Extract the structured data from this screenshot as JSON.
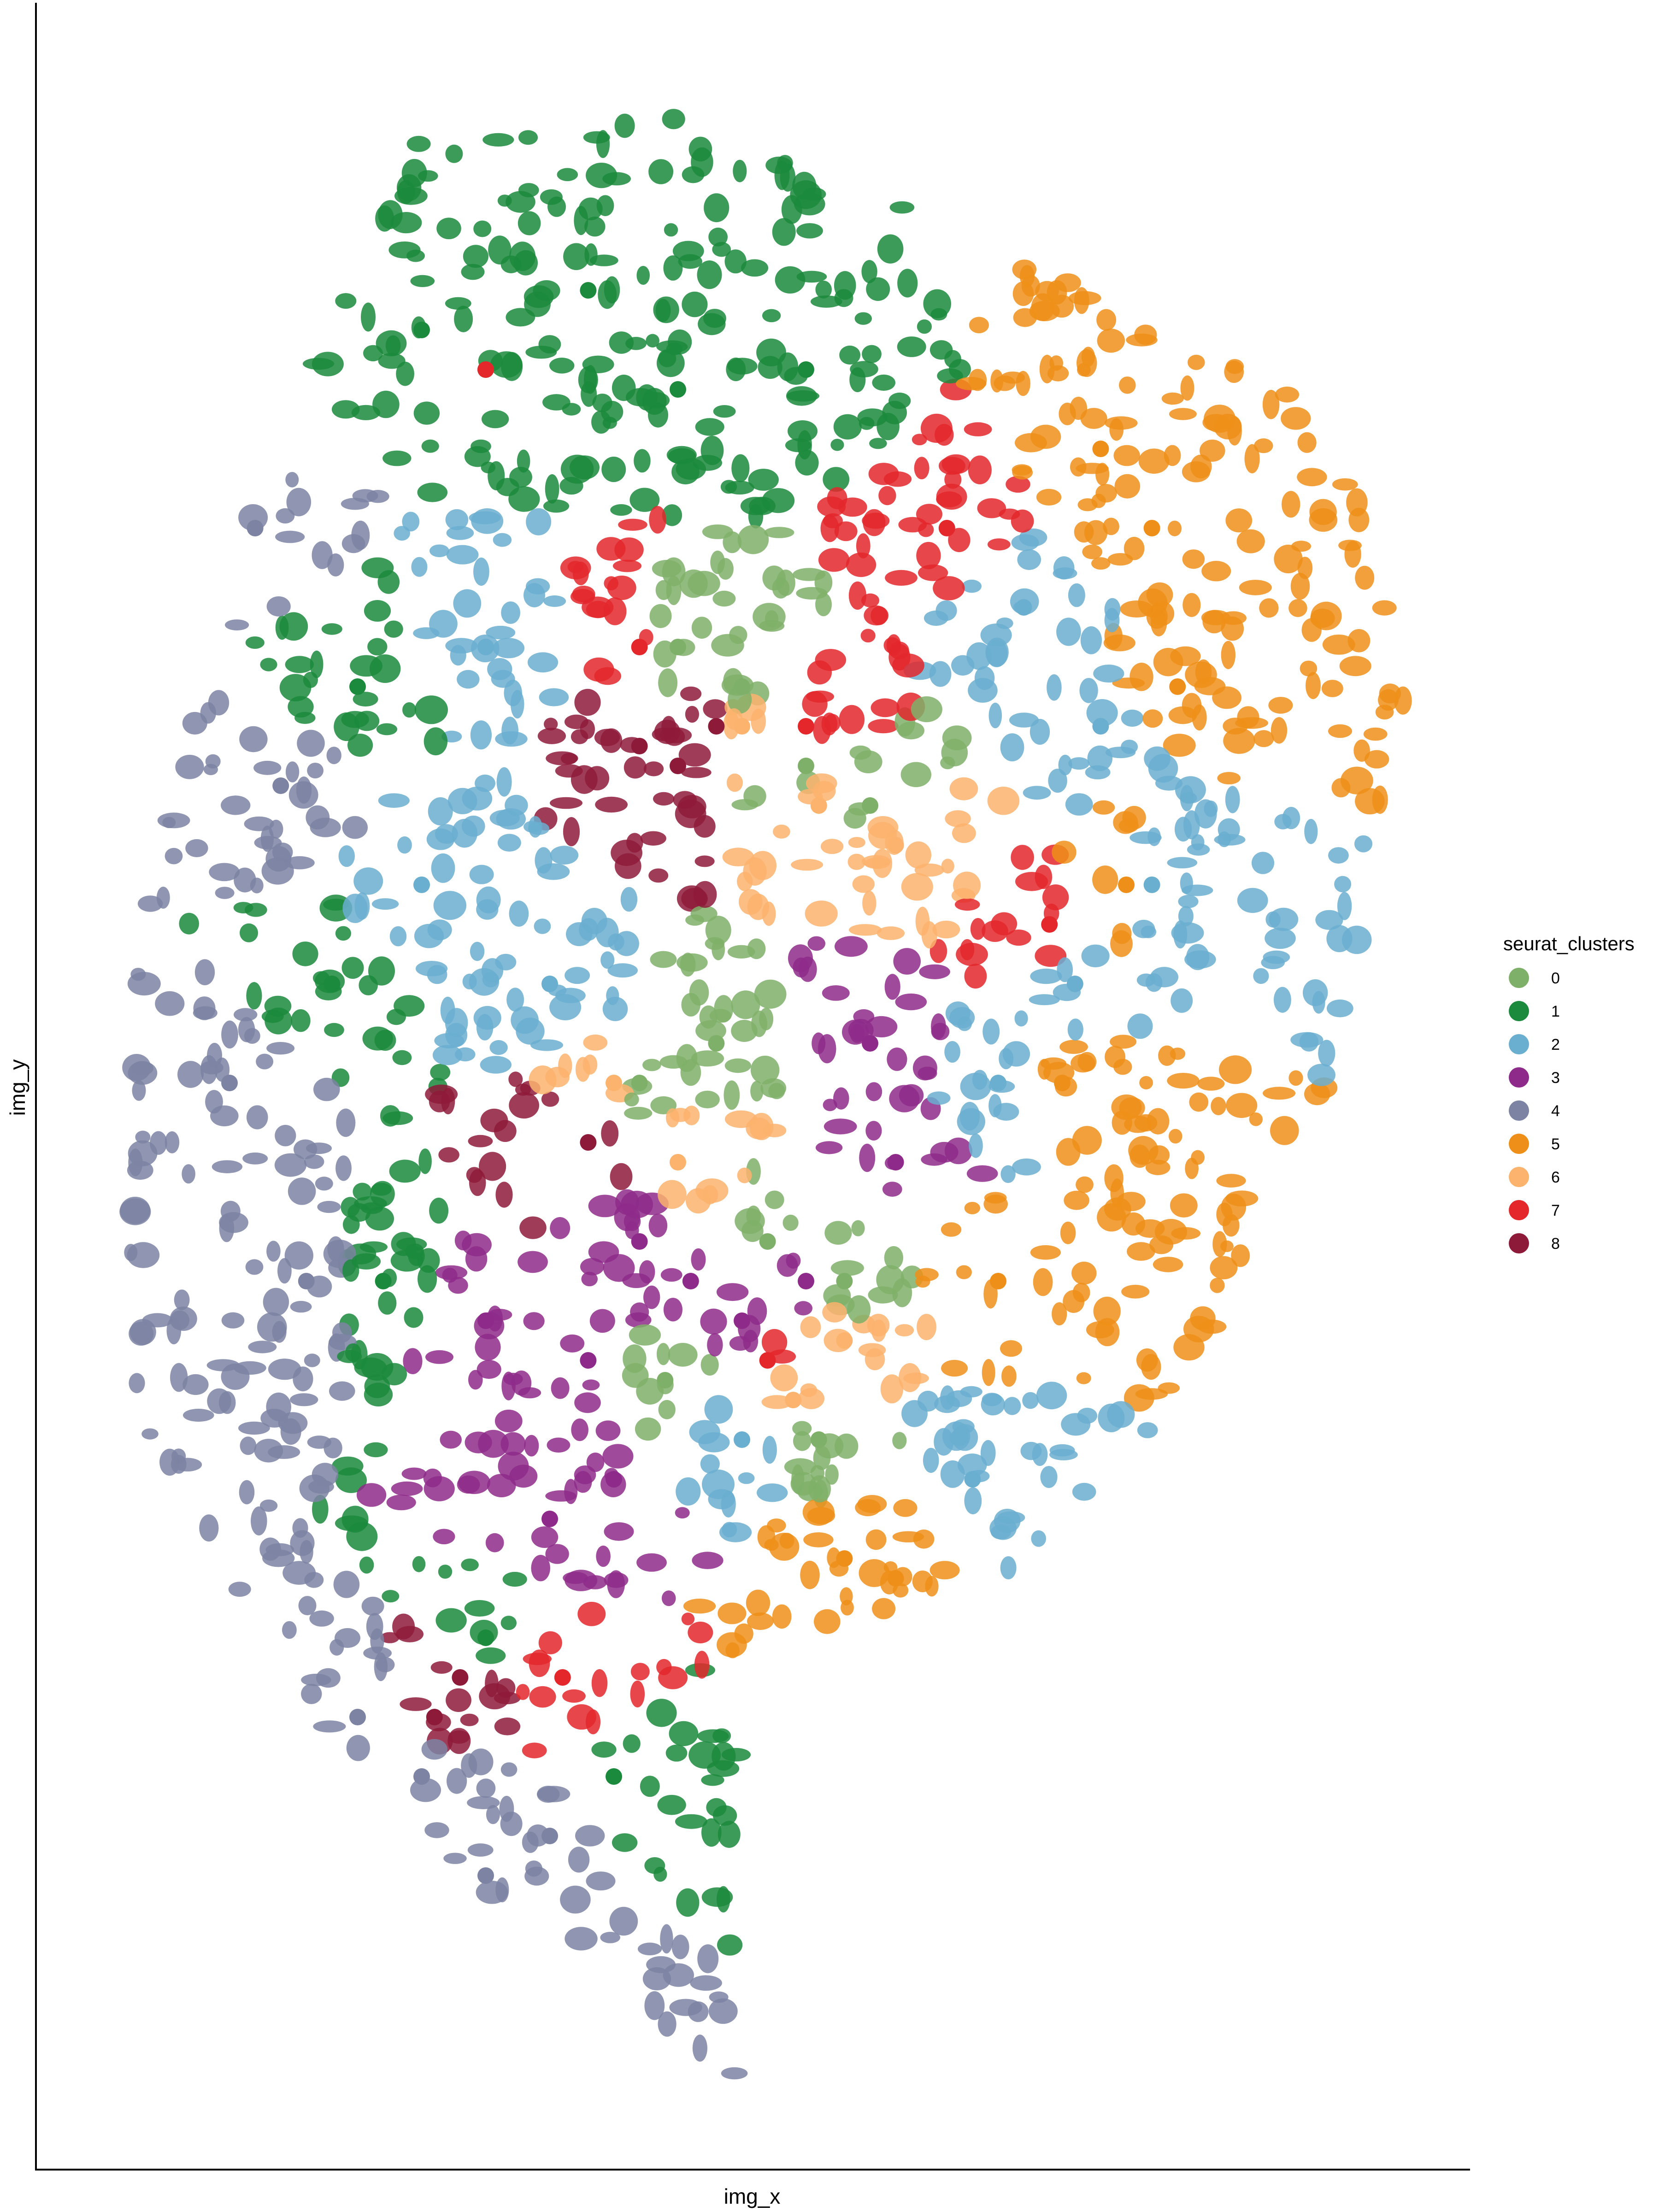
{
  "chart_data": {
    "type": "scatter",
    "title": "",
    "xlabel": "img_x",
    "ylabel": "img_y",
    "grid": false,
    "legend_position": "right",
    "legend": {
      "title": "seurat_clusters",
      "entries": [
        {
          "label": "0",
          "color": "#7fb069"
        },
        {
          "label": "1",
          "color": "#1b8a3c"
        },
        {
          "label": "2",
          "color": "#6aaed0"
        },
        {
          "label": "3",
          "color": "#8e2a8a"
        },
        {
          "label": "4",
          "color": "#7d84a3"
        },
        {
          "label": "5",
          "color": "#ee8f19"
        },
        {
          "label": "6",
          "color": "#fcb36d"
        },
        {
          "label": "7",
          "color": "#e3272b"
        },
        {
          "label": "8",
          "color": "#8e1a3a"
        }
      ]
    },
    "series": [
      {
        "name": "0",
        "color": "#7fb069",
        "x": [
          0.45,
          0.5,
          0.55,
          0.6,
          0.48,
          0.52,
          0.58,
          0.42,
          0.44,
          0.56
        ],
        "y": [
          0.72,
          0.7,
          0.66,
          0.64,
          0.52,
          0.42,
          0.4,
          0.5,
          0.35,
          0.32
        ]
      },
      {
        "name": "1",
        "color": "#1b8a3c",
        "x": [
          0.25,
          0.3,
          0.38,
          0.45,
          0.55,
          0.2,
          0.18,
          0.22,
          0.3,
          0.4
        ],
        "y": [
          0.88,
          0.86,
          0.9,
          0.85,
          0.86,
          0.7,
          0.55,
          0.4,
          0.22,
          0.15
        ]
      },
      {
        "name": "2",
        "color": "#6aaed0",
        "x": [
          0.72,
          0.78,
          0.82,
          0.76,
          0.7,
          0.3,
          0.25,
          0.35,
          0.68,
          0.5
        ],
        "y": [
          0.74,
          0.68,
          0.6,
          0.55,
          0.5,
          0.72,
          0.6,
          0.55,
          0.3,
          0.32
        ]
      },
      {
        "name": "3",
        "color": "#8e2a8a",
        "x": [
          0.42,
          0.46,
          0.5,
          0.55,
          0.6,
          0.62,
          0.38,
          0.35,
          0.3,
          0.4
        ],
        "y": [
          0.42,
          0.4,
          0.38,
          0.4,
          0.52,
          0.46,
          0.36,
          0.28,
          0.38,
          0.3
        ]
      },
      {
        "name": "4",
        "color": "#7d84a3",
        "x": [
          0.12,
          0.14,
          0.1,
          0.16,
          0.2,
          0.25,
          0.3,
          0.35
        ],
        "y": [
          0.78,
          0.65,
          0.5,
          0.4,
          0.18,
          0.15,
          0.1,
          0.12
        ]
      },
      {
        "name": "5",
        "color": "#ee8f19",
        "x": [
          0.78,
          0.82,
          0.84,
          0.8,
          0.75,
          0.7,
          0.58,
          0.62
        ],
        "y": [
          0.82,
          0.78,
          0.7,
          0.6,
          0.5,
          0.4,
          0.26,
          0.25
        ]
      },
      {
        "name": "6",
        "color": "#fcb36d",
        "x": [
          0.5,
          0.56,
          0.62,
          0.4,
          0.45,
          0.58,
          0.54
        ],
        "y": [
          0.68,
          0.64,
          0.62,
          0.5,
          0.46,
          0.37,
          0.34
        ]
      },
      {
        "name": "7",
        "color": "#e3272b",
        "x": [
          0.3,
          0.42,
          0.55,
          0.66,
          0.74,
          0.52,
          0.36
        ],
        "y": [
          0.86,
          0.72,
          0.68,
          0.78,
          0.58,
          0.36,
          0.2
        ]
      },
      {
        "name": "8",
        "color": "#8e1a3a",
        "x": [
          0.42,
          0.45,
          0.48,
          0.38,
          0.26,
          0.28
        ],
        "y": [
          0.67,
          0.66,
          0.68,
          0.47,
          0.18,
          0.2
        ]
      }
    ]
  }
}
